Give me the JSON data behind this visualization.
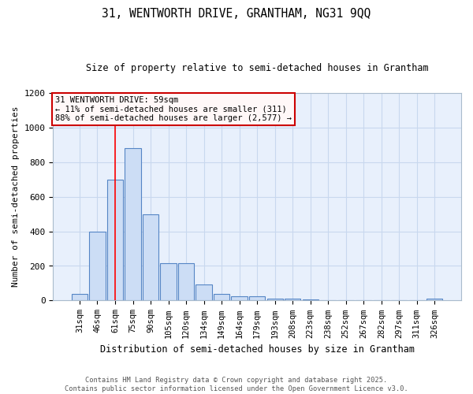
{
  "title1": "31, WENTWORTH DRIVE, GRANTHAM, NG31 9QQ",
  "title2": "Size of property relative to semi-detached houses in Grantham",
  "xlabel": "Distribution of semi-detached houses by size in Grantham",
  "ylabel": "Number of semi-detached properties",
  "bar_labels": [
    "31sqm",
    "46sqm",
    "61sqm",
    "75sqm",
    "90sqm",
    "105sqm",
    "120sqm",
    "134sqm",
    "149sqm",
    "164sqm",
    "179sqm",
    "193sqm",
    "208sqm",
    "223sqm",
    "238sqm",
    "252sqm",
    "267sqm",
    "282sqm",
    "297sqm",
    "311sqm",
    "326sqm"
  ],
  "bar_heights": [
    40,
    400,
    700,
    880,
    500,
    215,
    215,
    95,
    40,
    25,
    25,
    10,
    10,
    5,
    3,
    3,
    3,
    3,
    0,
    0,
    10
  ],
  "bar_color": "#ccddf5",
  "bar_edge_color": "#5585c5",
  "grid_color": "#c8d8ee",
  "bg_color": "#ffffff",
  "plot_bg_color": "#e8f0fc",
  "red_line_x": 2.0,
  "annotation_title": "31 WENTWORTH DRIVE: 59sqm",
  "annotation_line2": "← 11% of semi-detached houses are smaller (311)",
  "annotation_line3": "88% of semi-detached houses are larger (2,577) →",
  "annotation_box_color": "#fff8f8",
  "annotation_border_color": "#cc0000",
  "footer1": "Contains HM Land Registry data © Crown copyright and database right 2025.",
  "footer2": "Contains public sector information licensed under the Open Government Licence v3.0.",
  "ylim": [
    0,
    1200
  ],
  "yticks": [
    0,
    200,
    400,
    600,
    800,
    1000,
    1200
  ]
}
